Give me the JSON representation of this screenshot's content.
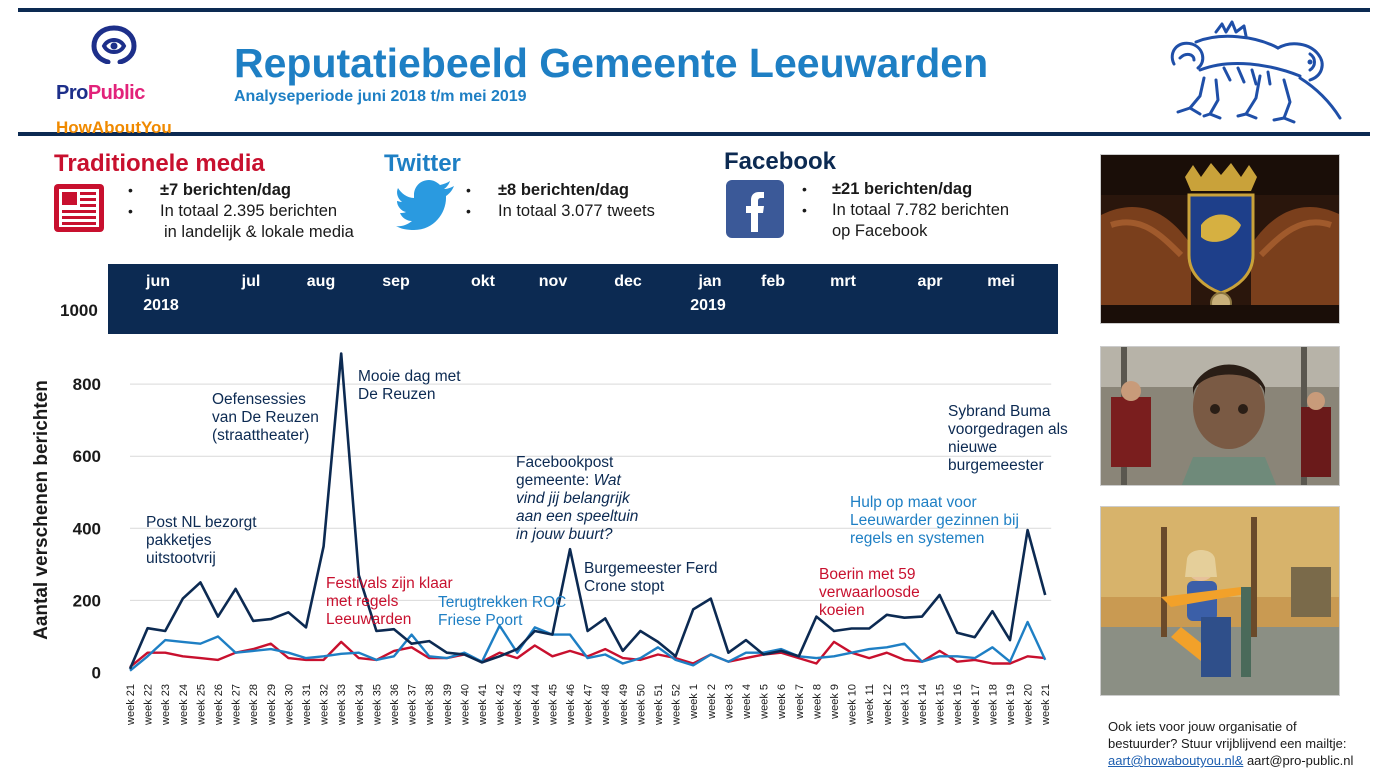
{
  "header": {
    "title": "Reputatiebeeld Gemeente Leeuwarden",
    "subtitle": "Analyseperiode juni 2018 t/m mei 2019",
    "logo_name_part1": "Pro",
    "logo_name_part2": "Public",
    "logo_sub": "HowAboutYou"
  },
  "media": {
    "traditional": {
      "heading": "Traditionele media",
      "line1": "±7 berichten/dag",
      "line2": "In totaal 2.395 berichten",
      "line3": "in landelijk & lokale media"
    },
    "twitter": {
      "heading": "Twitter",
      "line1": "±8 berichten/dag",
      "line2": "In totaal 3.077 tweets"
    },
    "facebook": {
      "heading": "Facebook",
      "line1": "±21 berichten/dag",
      "line2": "In totaal  7.782 berichten",
      "line3": "op Facebook"
    }
  },
  "colors": {
    "navy": "#0c2a52",
    "blue": "#1e7fc4",
    "red": "#c8102e"
  },
  "months_band": {
    "months": [
      "jun",
      "jul",
      "aug",
      "sep",
      "okt",
      "nov",
      "dec",
      "jan",
      "feb",
      "mrt",
      "apr",
      "mei"
    ],
    "years": [
      "2018",
      "2019"
    ]
  },
  "contact": {
    "line1": "Ook iets voor jouw organisatie of",
    "line2": "bestuurder? Stuur vrijblijvend een mailtje:",
    "email1": "aart@howaboutyou.nl&",
    "email2": " aart@pro-public.nl"
  },
  "chart_data": {
    "type": "line",
    "ylabel": "Aantal verschenen berichten",
    "ylim": [
      0,
      1000
    ],
    "yticks": [
      0,
      200,
      400,
      600,
      800,
      1000
    ],
    "grid": true,
    "categories": [
      "week 21",
      "week 22",
      "week 23",
      "week 24",
      "week 25",
      "week 26",
      "week 27",
      "week 28",
      "week 29",
      "week 30",
      "week 31",
      "week 32",
      "week 33",
      "week 34",
      "week 35",
      "week 36",
      "week 37",
      "week 38",
      "week 39",
      "week 40",
      "week 41",
      "week 42",
      "week 43",
      "week 44",
      "week 45",
      "week 46",
      "week 47",
      "week 48",
      "week 49",
      "week 50",
      "week 51",
      "week 52",
      "week 1",
      "week 2",
      "week 3",
      "week 4",
      "week 5",
      "week 6",
      "week 7",
      "week 8",
      "week 9",
      "week 10",
      "week 11",
      "week 12",
      "week 13",
      "week 14",
      "week 15",
      "week 16",
      "week 17",
      "week 18",
      "week 19",
      "week 20",
      "week 21"
    ],
    "series": [
      {
        "color": "#0c2a52",
        "values": [
          10,
          123,
          115,
          205,
          250,
          155,
          232,
          143,
          148,
          167,
          125,
          350,
          885,
          270,
          115,
          120,
          80,
          87,
          55,
          50,
          28,
          45,
          65,
          115,
          105,
          342,
          115,
          150,
          60,
          115,
          85,
          45,
          175,
          205,
          55,
          90,
          50,
          60,
          45,
          155,
          115,
          122,
          122,
          160,
          152,
          155,
          215,
          110,
          98,
          170,
          90,
          395,
          215
        ]
      },
      {
        "color": "#1e7fc4",
        "values": [
          5,
          45,
          90,
          85,
          80,
          100,
          55,
          60,
          65,
          55,
          40,
          45,
          52,
          55,
          35,
          45,
          105,
          45,
          40,
          55,
          30,
          130,
          55,
          125,
          105,
          105,
          40,
          50,
          25,
          40,
          70,
          35,
          20,
          50,
          30,
          55,
          55,
          65,
          45,
          40,
          45,
          55,
          65,
          70,
          80,
          30,
          45,
          45,
          40,
          70,
          30,
          140,
          35
        ]
      },
      {
        "color": "#c8102e",
        "values": [
          15,
          55,
          55,
          45,
          40,
          35,
          55,
          65,
          80,
          40,
          35,
          35,
          85,
          40,
          35,
          60,
          70,
          40,
          40,
          50,
          30,
          55,
          40,
          75,
          45,
          60,
          45,
          65,
          40,
          35,
          50,
          40,
          25,
          50,
          30,
          40,
          50,
          55,
          40,
          25,
          85,
          55,
          40,
          55,
          35,
          30,
          60,
          30,
          35,
          25,
          25,
          45,
          40
        ]
      }
    ],
    "annotations": [
      {
        "lines": [
          "Oefensessies",
          "van De Reuzen",
          "(straattheater)"
        ],
        "color": "#0c2a52"
      },
      {
        "lines": [
          "Mooie dag met",
          "De Reuzen"
        ],
        "color": "#0c2a52"
      },
      {
        "lines": [
          "Post NL bezorgt",
          "pakketjes",
          "uitstootvrij"
        ],
        "color": "#0c2a52"
      },
      {
        "lines": [
          "Festivals zijn klaar",
          "met regels",
          "Leeuwarden"
        ],
        "color": "#c8102e"
      },
      {
        "lines": [
          "Terugtrekken ROC",
          "Friese Poort"
        ],
        "color": "#1e7fc4"
      },
      {
        "lines": [
          "Facebookpost",
          "gemeente: Wat",
          "vind jij belangrijk",
          "aan een speeltuin",
          "in jouw buurt?"
        ],
        "color": "#0c2a52"
      },
      {
        "lines": [
          "Burgemeester Ferd",
          "Crone stopt"
        ],
        "color": "#0c2a52"
      },
      {
        "lines": [
          "Boerin met 59",
          "verwaarloosde",
          "koeien"
        ],
        "color": "#c8102e"
      },
      {
        "lines": [
          "Hulp op maat voor",
          "Leeuwarder gezinnen bij",
          "regels en systemen"
        ],
        "color": "#1e7fc4"
      },
      {
        "lines": [
          "Sybrand Buma",
          "voorgedragen als",
          "nieuwe",
          "burgemeester"
        ],
        "color": "#0c2a52"
      }
    ]
  }
}
